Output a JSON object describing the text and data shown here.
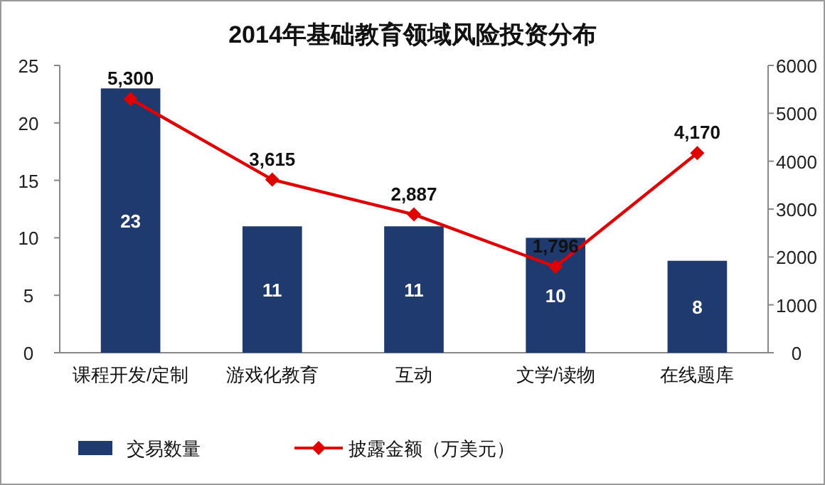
{
  "chart_data": {
    "type": "bar",
    "title": "2014年基础教育领域风险投资分布",
    "categories": [
      "课程开发/定制",
      "游戏化教育",
      "互动",
      "文学/读物",
      "在线题库"
    ],
    "series": [
      {
        "name": "交易数量",
        "color": "#1f3a6e",
        "values": [
          23,
          11,
          11,
          10,
          8
        ],
        "value_labels": [
          "23",
          "11",
          "11",
          "10",
          "8"
        ]
      },
      {
        "name": "披露金额（万美元）",
        "type": "line",
        "axis": "y2",
        "color": "#e00000",
        "marker": "diamond",
        "values": [
          5300,
          3615,
          2887,
          1796,
          4170
        ],
        "value_labels": [
          "5,300",
          "3,615",
          "2,887",
          "1,796",
          "4,170"
        ]
      }
    ],
    "ylim": [
      0,
      25
    ],
    "yticks": [
      0,
      5,
      10,
      15,
      20,
      25
    ],
    "y2lim": [
      0,
      6000
    ],
    "y2ticks": [
      0,
      1000,
      2000,
      3000,
      4000,
      5000,
      6000
    ],
    "legend": "bottom"
  }
}
